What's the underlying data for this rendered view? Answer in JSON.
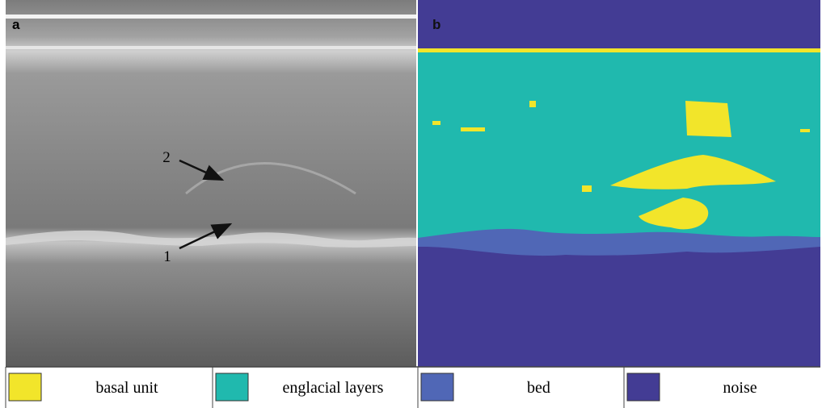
{
  "panels": [
    {
      "label": "a"
    },
    {
      "label": "b"
    }
  ],
  "annotations": [
    {
      "label": "2"
    },
    {
      "label": "1"
    }
  ],
  "legend": [
    {
      "label": "basal unit",
      "color": "#f2e52a"
    },
    {
      "label": "englacial layers",
      "color": "#20b9ae"
    },
    {
      "label": "bed",
      "color": "#5067b6"
    },
    {
      "label": "noise",
      "color": "#433c94"
    }
  ]
}
